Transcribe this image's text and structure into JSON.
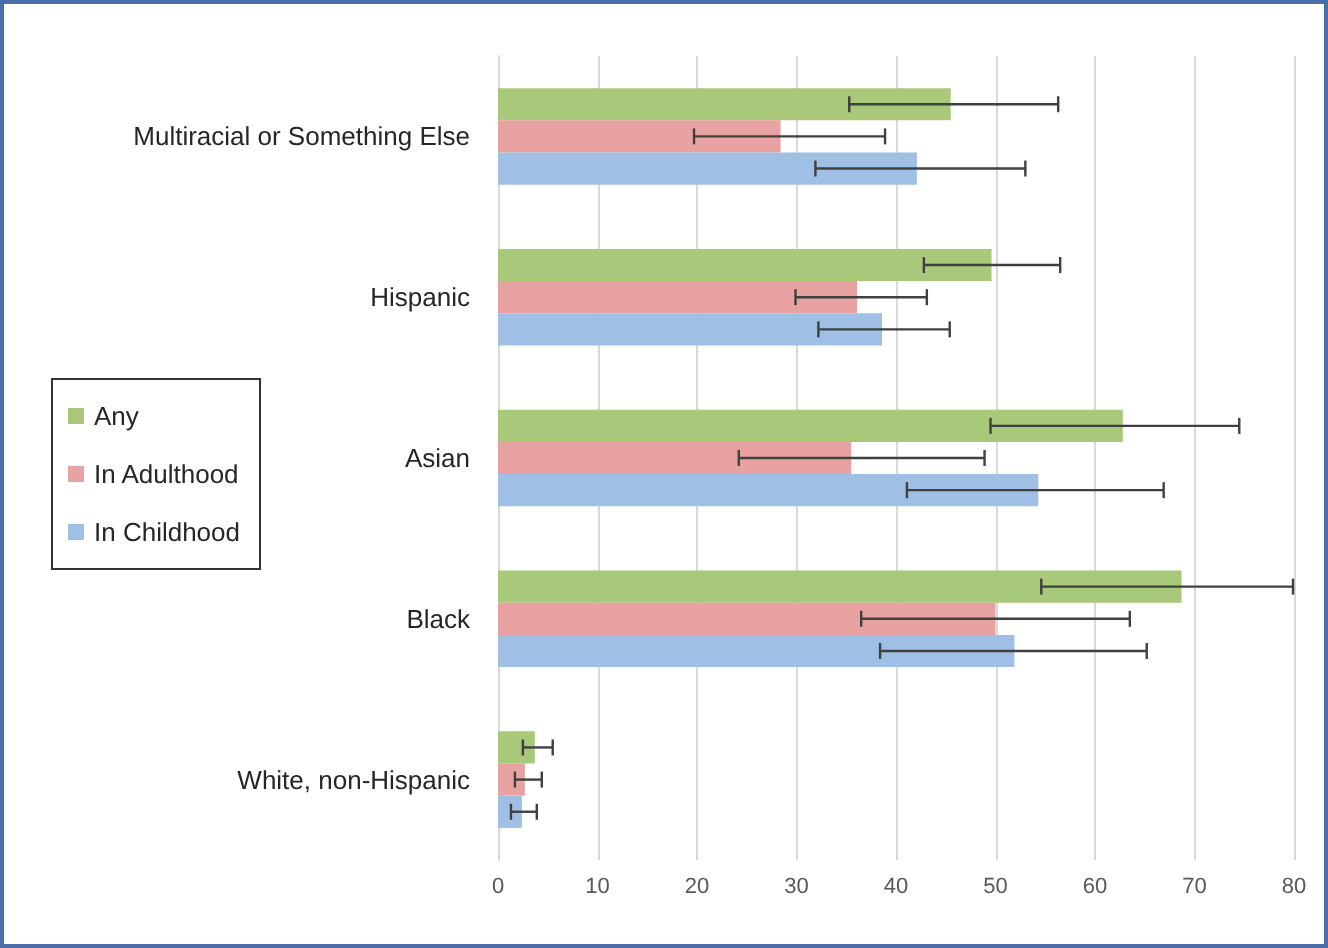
{
  "chart_data": {
    "type": "bar",
    "orientation": "horizontal",
    "categories": [
      "Multiracial or Something Else",
      "Hispanic",
      "Asian",
      "Black",
      "White, non-Hispanic"
    ],
    "series": [
      {
        "name": "Any",
        "color": "#a9c97a",
        "values": [
          45.5,
          49.6,
          62.8,
          68.7,
          3.7
        ],
        "errors": [
          [
            35.3,
            56.3
          ],
          [
            42.8,
            56.5
          ],
          [
            49.5,
            74.5
          ],
          [
            54.6,
            79.9
          ],
          [
            2.5,
            5.5
          ]
        ]
      },
      {
        "name": "In Adulthood",
        "color": "#e8a2a2",
        "values": [
          28.4,
          36.1,
          35.5,
          50,
          2.7
        ],
        "errors": [
          [
            19.7,
            38.9
          ],
          [
            29.9,
            43.1
          ],
          [
            24.2,
            48.9
          ],
          [
            36.5,
            63.5
          ],
          [
            1.7,
            4.4
          ]
        ]
      },
      {
        "name": "In Childhood",
        "color": "#9fbfe4",
        "values": [
          42.1,
          38.6,
          54.3,
          51.9,
          2.4
        ],
        "errors": [
          [
            31.9,
            53.0
          ],
          [
            32.2,
            45.4
          ],
          [
            41.1,
            66.9
          ],
          [
            38.4,
            65.2
          ],
          [
            1.3,
            3.9
          ]
        ]
      }
    ],
    "xlim": [
      0,
      80
    ],
    "xticks": [
      0,
      10,
      20,
      30,
      40,
      50,
      60,
      70,
      80
    ],
    "grid": "x",
    "legend": "left"
  }
}
